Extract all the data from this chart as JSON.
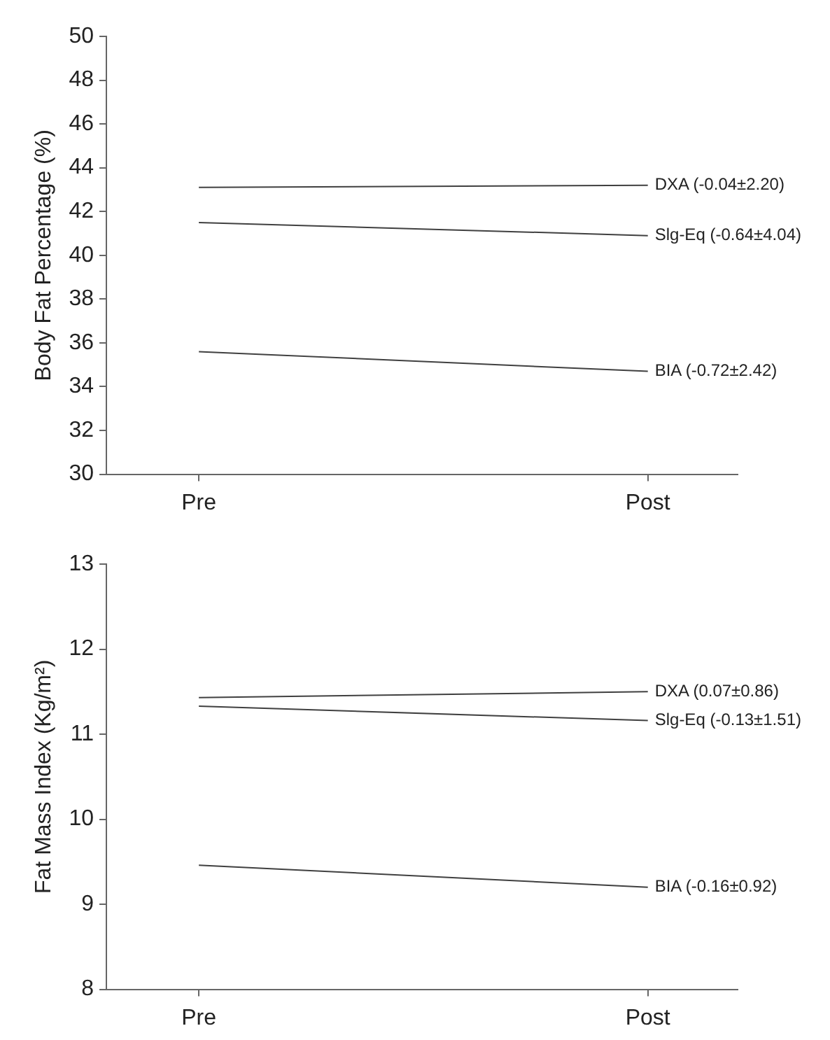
{
  "chart_data": [
    {
      "type": "line",
      "ylabel": "Body Fat Percentage (%)",
      "categories": [
        "Pre",
        "Post"
      ],
      "marker": "none",
      "ylim": [
        30,
        50
      ],
      "yticks": [
        30,
        32,
        34,
        36,
        38,
        40,
        42,
        44,
        46,
        48,
        50
      ],
      "series": [
        {
          "name": "DXA (-0.04±2.20)",
          "color": "#404040",
          "values": [
            43.1,
            43.2
          ]
        },
        {
          "name": "Slg-Eq (-0.64±4.04)",
          "color": "#404040",
          "values": [
            41.5,
            40.9
          ]
        },
        {
          "name": "BIA (-0.72±2.42)",
          "color": "#404040",
          "values": [
            35.6,
            34.7
          ]
        }
      ]
    },
    {
      "type": "line",
      "ylabel": "Fat Mass Index (Kg/m²)",
      "categories": [
        "Pre",
        "Post"
      ],
      "marker": "none",
      "ylim": [
        8,
        13
      ],
      "yticks": [
        8,
        9,
        10,
        11,
        12,
        13
      ],
      "series": [
        {
          "name": "DXA (0.07±0.86)",
          "color": "#404040",
          "values": [
            11.43,
            11.5
          ]
        },
        {
          "name": "Slg-Eq (-0.13±1.51)",
          "color": "#404040",
          "values": [
            11.33,
            11.16
          ]
        },
        {
          "name": "BIA (-0.16±0.92)",
          "color": "#404040",
          "values": [
            9.46,
            9.2
          ]
        }
      ]
    }
  ]
}
